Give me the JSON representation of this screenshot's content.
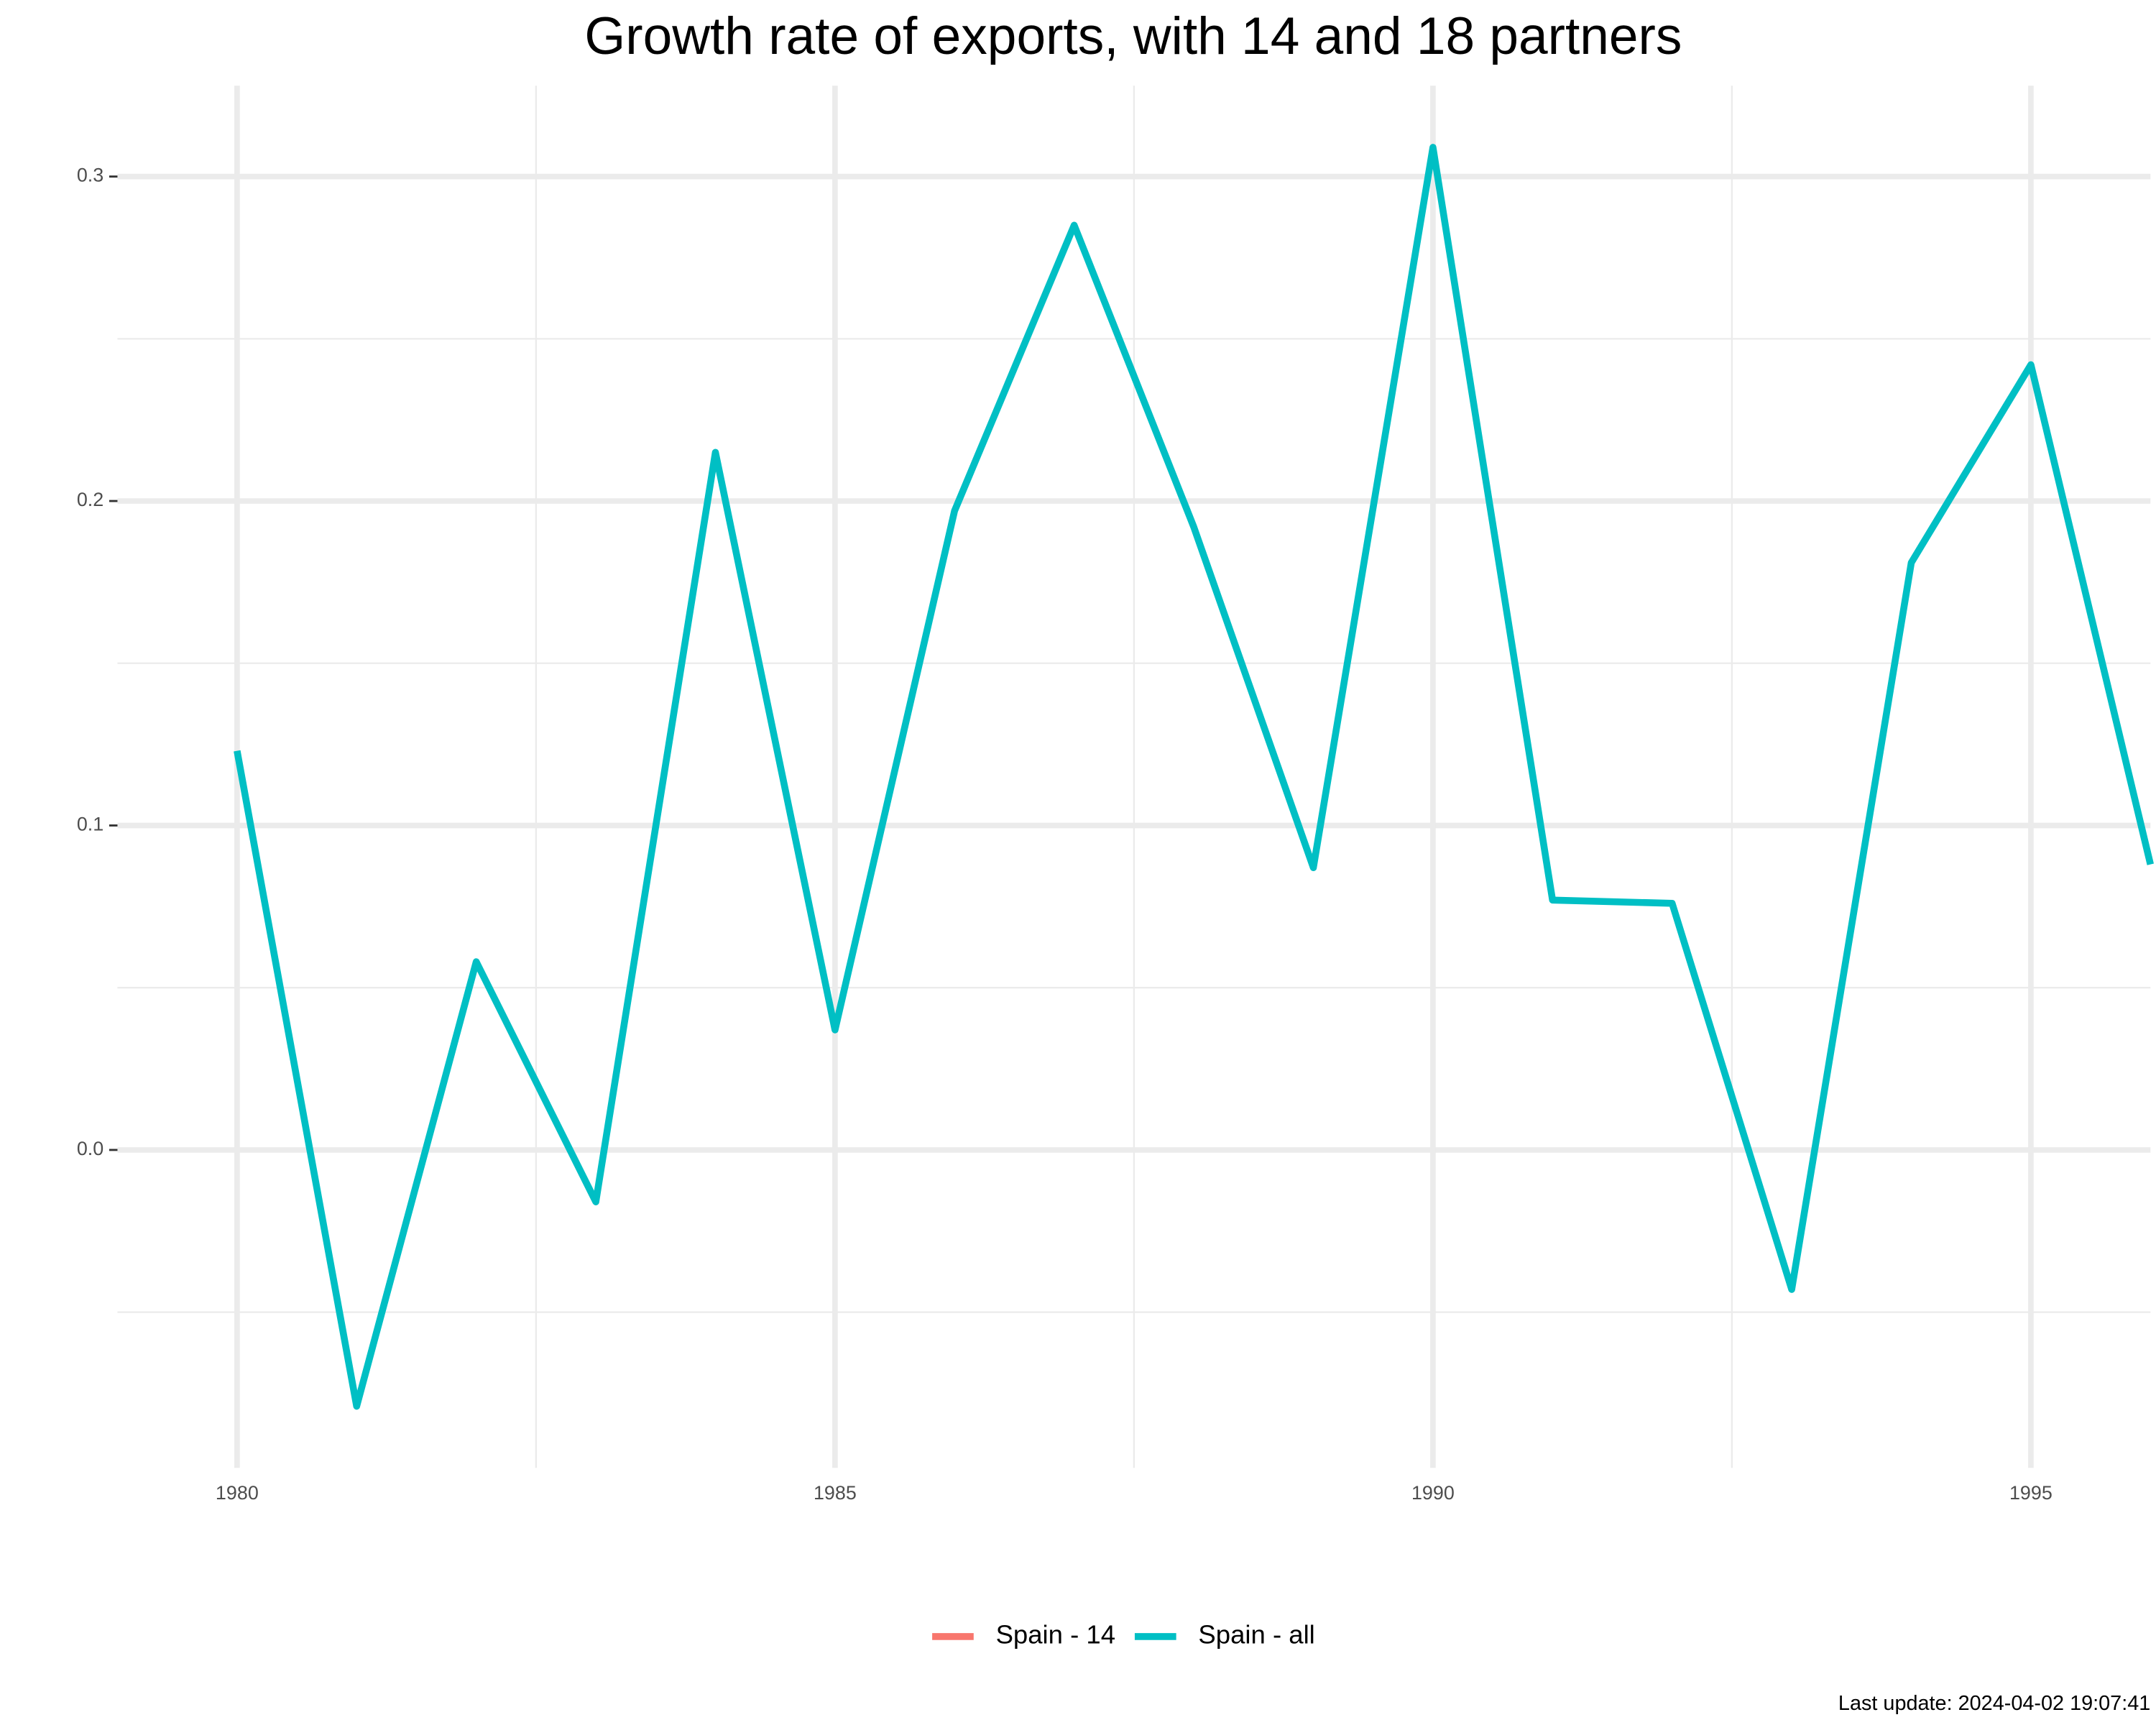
{
  "chart_data": {
    "type": "line",
    "title": "Growth rate of exports, with 14 and 18 partners",
    "caption": "Last update: 2024-04-02 19:07:41",
    "x": [
      1980,
      1981,
      1982,
      1983,
      1984,
      1985,
      1986,
      1987,
      1988,
      1989,
      1990,
      1991,
      1992,
      1993,
      1994,
      1995,
      1996
    ],
    "series": [
      {
        "name": "Spain - 14",
        "color": "#f8766d",
        "values": [
          null,
          null,
          null,
          null,
          null,
          null,
          null,
          null,
          null,
          null,
          null,
          null,
          null,
          null,
          null,
          null,
          null
        ]
      },
      {
        "name": "Spain - all",
        "color": "#00bfc4",
        "values": [
          0.123,
          -0.079,
          0.058,
          -0.016,
          0.215,
          0.037,
          0.197,
          0.285,
          0.192,
          0.087,
          0.309,
          0.077,
          0.076,
          -0.043,
          0.181,
          0.242,
          0.088
        ]
      }
    ],
    "xlim": [
      1979,
      1996
    ],
    "xticks": [
      1980,
      1985,
      1990,
      1995
    ],
    "ylim": [
      -0.098,
      0.328
    ],
    "yticks": [
      {
        "value": 0,
        "label": "0.0"
      },
      0.1,
      0.2,
      0.3
    ],
    "grid": true,
    "legend": "bottom"
  }
}
